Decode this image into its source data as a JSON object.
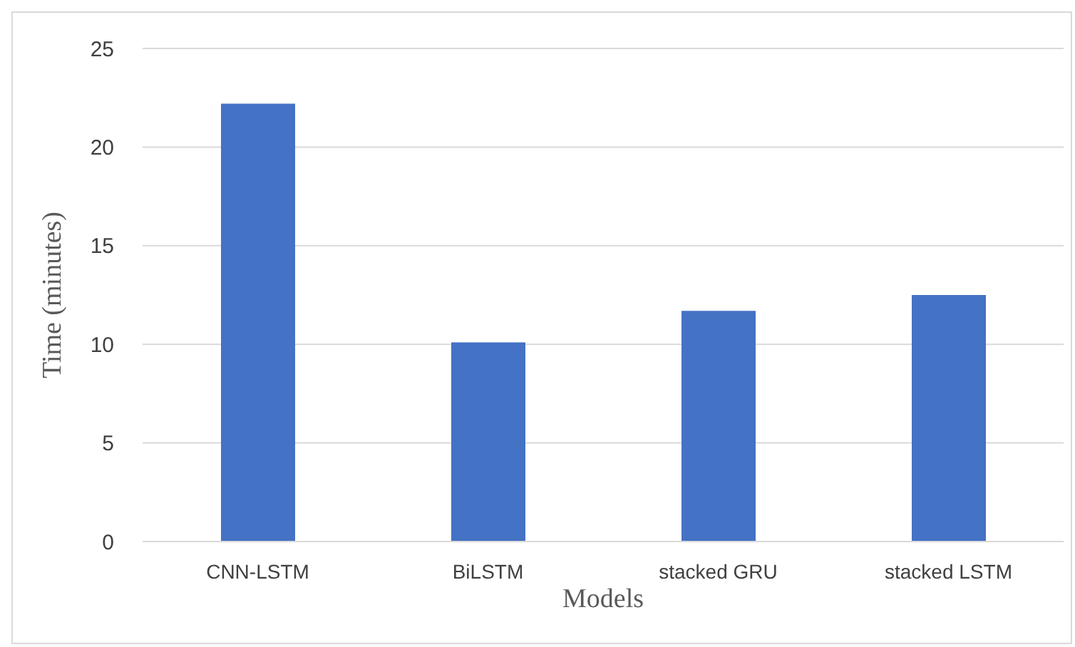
{
  "chart_data": {
    "type": "bar",
    "xlabel": "Models",
    "ylabel": "Time (minutes)",
    "categories": [
      "CNN-LSTM",
      "BiLSTM",
      "stacked GRU",
      "stacked LSTM"
    ],
    "values": [
      22.2,
      10.1,
      11.7,
      12.5
    ],
    "color": "#4472c4",
    "ylim": [
      0,
      25
    ],
    "yticks": [
      0,
      5,
      10,
      15,
      20,
      25
    ],
    "grid": "y"
  }
}
